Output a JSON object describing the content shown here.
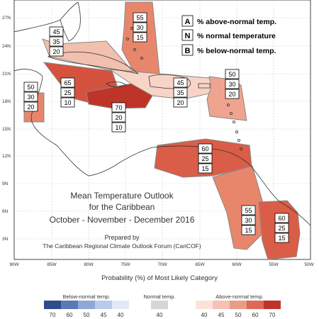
{
  "title": {
    "line1": "Mean Temperature Outlook",
    "line2": "for the Caribbean",
    "line3": "October - November - December 2016",
    "prepared1": "Prepared by",
    "prepared2": "The Caribbean Regional Climate Outlook Forum (CariCOF)"
  },
  "legend_key": {
    "a_letter": "A",
    "a_text": "% above-normal temp.",
    "n_letter": "N",
    "n_text": "% normal temperature",
    "b_letter": "B",
    "b_text": "% below-normal temp."
  },
  "axes": {
    "lat_labels": [
      "27N",
      "24N",
      "21N",
      "18N",
      "15N",
      "12N",
      "9N",
      "6N",
      "3N"
    ],
    "lon_labels": [
      "90W",
      "85W",
      "80W",
      "75W",
      "70W",
      "65W",
      "60W",
      "55W",
      "50W"
    ]
  },
  "regions": [
    {
      "id": "bahamas-north",
      "above": "55",
      "normal": "30",
      "below": "15",
      "fill": "#E8866C"
    },
    {
      "id": "bahamas-cuba-west",
      "above": "45",
      "normal": "35",
      "below": "20",
      "fill": "#F2C0AE"
    },
    {
      "id": "central-america-north",
      "above": "50",
      "normal": "30",
      "below": "20",
      "fill": "#E8866C"
    },
    {
      "id": "cuba-jamaica-cayman",
      "above": "65",
      "normal": "25",
      "below": "10",
      "fill": "#D5533E"
    },
    {
      "id": "jamaica-south",
      "above": "70",
      "normal": "20",
      "below": "10",
      "fill": "#BE3429"
    },
    {
      "id": "greater-antilles-east",
      "above": "45",
      "normal": "35",
      "below": "20",
      "fill": "#F7D4C6"
    },
    {
      "id": "lesser-antilles-north",
      "above": "50",
      "normal": "30",
      "below": "20",
      "fill": "#EFA48F"
    },
    {
      "id": "lesser-antilles-south",
      "above": "60",
      "normal": "25",
      "below": "15",
      "fill": "#DA5D48"
    },
    {
      "id": "guyana",
      "above": "55",
      "normal": "30",
      "below": "15",
      "fill": "#E8866C"
    },
    {
      "id": "suriname-french-guiana",
      "above": "60",
      "normal": "25",
      "below": "15",
      "fill": "#DA5D48"
    }
  ],
  "colorbar": {
    "title": "Probability (%) of Most Likely Category",
    "below_label": "Below-normal temp.",
    "normal_label": "Normal temp.",
    "above_label": "Above-normal temp.",
    "below_ticks": [
      "70",
      "60",
      "50",
      "45",
      "40"
    ],
    "normal_ticks": [
      "40"
    ],
    "above_ticks": [
      "40",
      "45",
      "50",
      "60",
      "70"
    ],
    "below_colors": [
      "#2E4C8C",
      "#5B79B6",
      "#8FA8D6",
      "#BACBE9",
      "#E2EAF6"
    ],
    "normal_colors": [
      "#D6D6D6"
    ],
    "above_colors": [
      "#FBE3DC",
      "#F5C2B3",
      "#EC9B86",
      "#DC6A57",
      "#BE3429"
    ]
  },
  "colors": {
    "land": "#ffffff",
    "coast": "#333333",
    "region_border": "#888888",
    "label_border": "#000000"
  }
}
